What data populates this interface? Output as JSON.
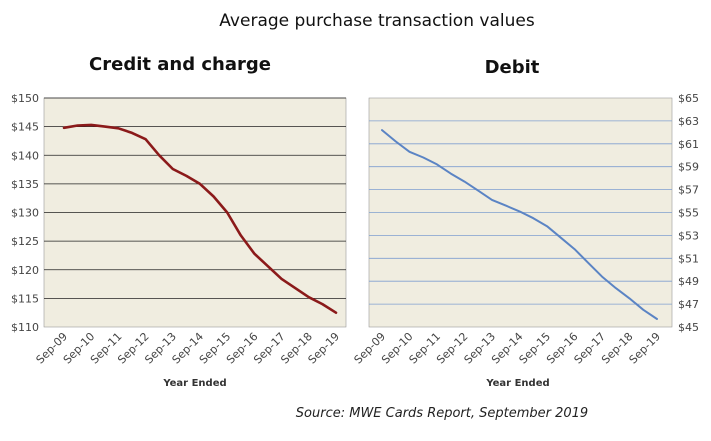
{
  "title": "Average purchase transaction values",
  "source": "Source: MWE Cards Report, September 2019",
  "chart_data": [
    {
      "type": "line",
      "title": "Credit and charge",
      "xlabel": "Year Ended",
      "ylabel": "",
      "categories": [
        "Sep-09",
        "Sep-10",
        "Sep-11",
        "Sep-12",
        "Sep-13",
        "Sep-14",
        "Sep-15",
        "Sep-16",
        "Sep-17",
        "Sep-18",
        "Sep-19"
      ],
      "y_axis_side": "left",
      "ylim": [
        110,
        150
      ],
      "yticks": [
        110,
        115,
        120,
        125,
        130,
        135,
        140,
        145,
        150
      ],
      "ytick_labels": [
        "$110",
        "$115",
        "$120",
        "$125",
        "$130",
        "$135",
        "$140",
        "$145",
        "$150"
      ],
      "grid": true,
      "series": [
        {
          "color": "#8b1a1a",
          "x": [
            0,
            0.5,
            1,
            1.5,
            2,
            2.5,
            3,
            3.5,
            4,
            4.5,
            5,
            5.5,
            6,
            6.5,
            7,
            7.5,
            8,
            8.5,
            9,
            9.5,
            10
          ],
          "values": [
            144.8,
            145.2,
            145.3,
            145.0,
            144.7,
            143.9,
            142.8,
            140.0,
            137.6,
            136.4,
            135.0,
            132.8,
            130.0,
            126.0,
            122.8,
            120.6,
            118.4,
            116.8,
            115.2,
            114.0,
            112.5
          ]
        }
      ]
    },
    {
      "type": "line",
      "title": "Debit",
      "xlabel": "Year Ended",
      "ylabel": "",
      "categories": [
        "Sep-09",
        "Sep-10",
        "Sep-11",
        "Sep-12",
        "Sep-13",
        "Sep-14",
        "Sep-15",
        "Sep-16",
        "Sep-17",
        "Sep-18",
        "Sep-19"
      ],
      "y_axis_side": "right",
      "ylim": [
        45,
        65
      ],
      "yticks": [
        45,
        47,
        49,
        51,
        53,
        55,
        57,
        59,
        61,
        63,
        65
      ],
      "ytick_labels": [
        "$45",
        "$47",
        "$49",
        "$51",
        "$53",
        "$55",
        "$57",
        "$59",
        "$61",
        "$63",
        "$65"
      ],
      "grid": true,
      "series": [
        {
          "color": "#5b84c4",
          "x": [
            0,
            0.5,
            1,
            1.5,
            2,
            2.5,
            3,
            3.5,
            4,
            4.5,
            5,
            5.5,
            6,
            6.5,
            7,
            7.5,
            8,
            8.5,
            9,
            9.5,
            10
          ],
          "values": [
            62.2,
            61.2,
            60.3,
            59.8,
            59.2,
            58.4,
            57.7,
            56.9,
            56.1,
            55.6,
            55.1,
            54.5,
            53.8,
            52.8,
            51.8,
            50.6,
            49.4,
            48.4,
            47.5,
            46.5,
            45.7
          ]
        }
      ]
    }
  ],
  "colors": {
    "plot_background": "#f0ede0",
    "gridline": "#222222",
    "debit_gridline": "#7f9fcf",
    "axis": "#999999"
  }
}
